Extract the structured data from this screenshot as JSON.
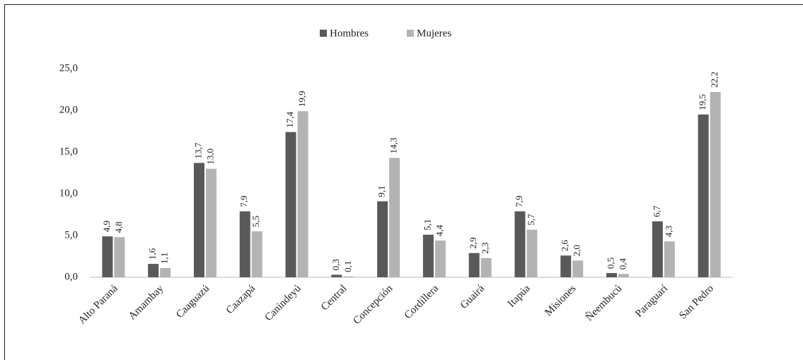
{
  "chart_data": {
    "type": "bar",
    "categories": [
      "Alto Paraná",
      "Amambay",
      "Caaguazú",
      "Caazapá",
      "Canindeyú",
      "Central",
      "Concepción",
      "Cordillera",
      "Guairá",
      "Itapúa",
      "Misiones",
      "Ñeembucú",
      "Paraguarí",
      "San Pedro"
    ],
    "series": [
      {
        "name": "Hombres",
        "color": "#595959",
        "values": [
          4.9,
          1.6,
          13.7,
          7.9,
          17.4,
          0.3,
          9.1,
          5.1,
          2.9,
          7.9,
          2.6,
          0.5,
          6.7,
          19.5
        ],
        "value_labels": [
          "4,9",
          "1,6",
          "13,7",
          "7,9",
          "17,4",
          "0,3",
          "9,1",
          "5,1",
          "2,9",
          "7,9",
          "2,6",
          "0,5",
          "6,7",
          "19,5"
        ]
      },
      {
        "name": "Mujeres",
        "color": "#b3b3b3",
        "values": [
          4.8,
          1.1,
          13.0,
          5.5,
          19.9,
          0.1,
          14.3,
          4.4,
          2.3,
          5.7,
          2.0,
          0.4,
          4.3,
          22.2
        ],
        "value_labels": [
          "4,8",
          "1,1",
          "13,0",
          "5,5",
          "19,9",
          "0,1",
          "14,3",
          "4,4",
          "2,3",
          "5,7",
          "2,0",
          "0,4",
          "4,3",
          "22,2"
        ]
      }
    ],
    "ylim": [
      0,
      25
    ],
    "yticks": [
      {
        "value": 0,
        "label": "0,0"
      },
      {
        "value": 5,
        "label": "5,0"
      },
      {
        "value": 10,
        "label": "10,0"
      },
      {
        "value": 15,
        "label": "15,0"
      },
      {
        "value": 20,
        "label": "20,0"
      },
      {
        "value": 25,
        "label": "25,0"
      }
    ],
    "grid": false,
    "legend": "top"
  }
}
